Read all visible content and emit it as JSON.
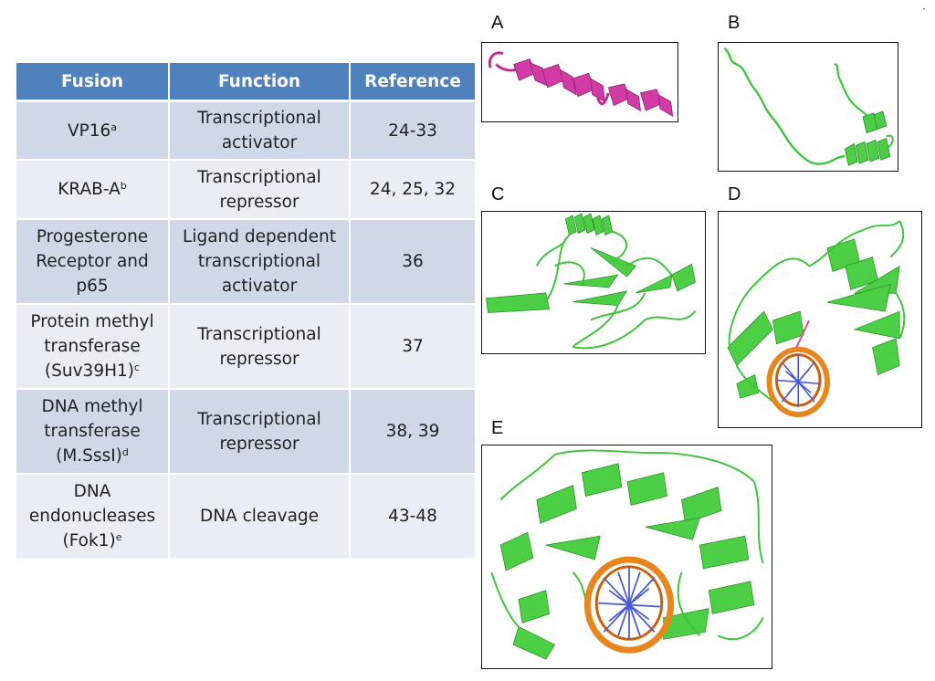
{
  "table": {
    "headers": [
      "Fusion",
      "Function",
      "Reference"
    ],
    "rows": [
      {
        "fusion": "VP16",
        "sup": "a",
        "function": [
          "Transcriptional",
          "activator"
        ],
        "reference": "24-33"
      },
      {
        "fusion": "KRAB-A",
        "sup": "b",
        "function": [
          "Transcriptional",
          "repressor"
        ],
        "reference": "24, 25, 32"
      },
      {
        "fusion": [
          "Progesterone",
          "Receptor and",
          "p65"
        ],
        "sup": "",
        "function": [
          "Ligand dependent",
          "transcriptional",
          "activator"
        ],
        "reference": "36"
      },
      {
        "fusion": [
          "Protein methyl",
          "transferase",
          "(Suv39H1)"
        ],
        "sup": "c",
        "function": [
          "Transcriptional",
          "repressor"
        ],
        "reference": "37"
      },
      {
        "fusion": [
          "DNA methyl",
          "transferase",
          "(M.SssI)"
        ],
        "sup": "d",
        "function": [
          "Transcriptional",
          "repressor"
        ],
        "reference": "38, 39"
      },
      {
        "fusion": [
          "DNA",
          "endonucleases",
          "(Fok1)"
        ],
        "sup": "e",
        "function": [
          "DNA cleavage"
        ],
        "reference": "43-48"
      }
    ]
  },
  "panels": [
    {
      "label": "A",
      "structure": "helix-ribbon-magenta"
    },
    {
      "label": "B",
      "structure": "coil-with-helix-green"
    },
    {
      "label": "C",
      "structure": "protein-ribbon-green"
    },
    {
      "label": "D",
      "structure": "protein-dna-complex"
    },
    {
      "label": "E",
      "structure": "protein-dna-complex-large"
    }
  ],
  "colors": {
    "header": "#4f81bd",
    "row_odd": "#d0d8e8",
    "row_even": "#e9edf4",
    "protein_magenta": "#d23aa5",
    "protein_green": "#3ec43a",
    "dna_backbone": "#e8861e",
    "dna_bases": "#4a5bd6"
  }
}
